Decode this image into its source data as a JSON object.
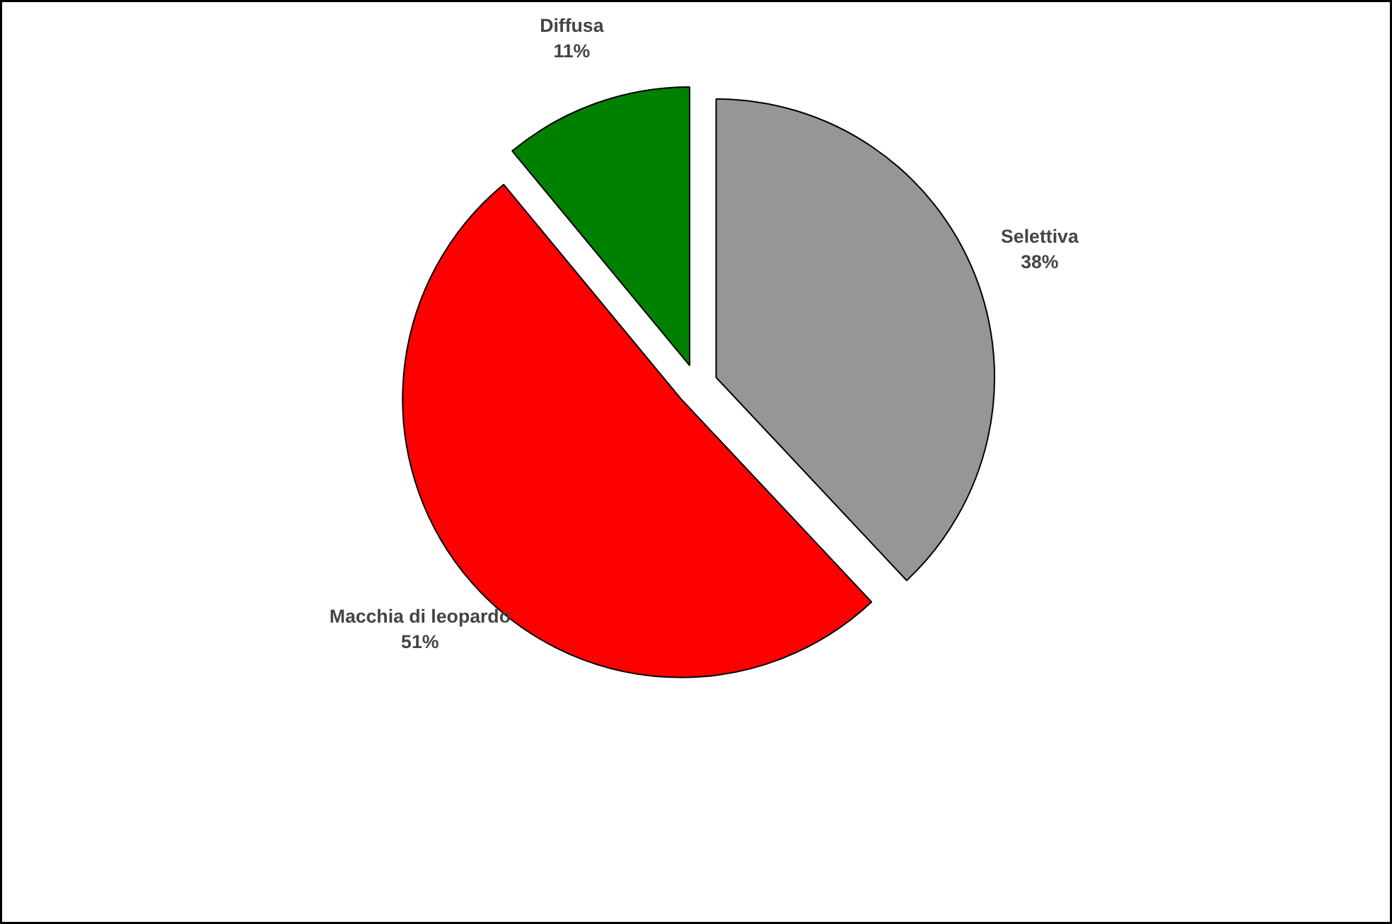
{
  "chart_data": {
    "type": "pie",
    "categories": [
      "Selettiva",
      "Macchia di leopardo",
      "Diffusa"
    ],
    "values": [
      38,
      51,
      11
    ],
    "colors": [
      "#969696",
      "#ff0000",
      "#008000"
    ],
    "value_labels": [
      "38%",
      "51%",
      "11%"
    ]
  }
}
